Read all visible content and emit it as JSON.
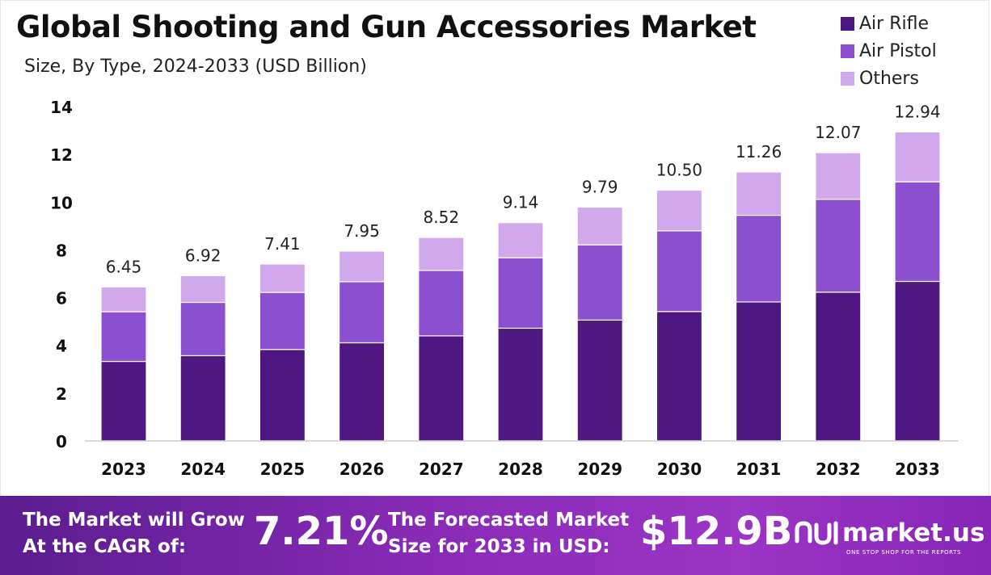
{
  "header": {
    "title": "Global Shooting and Gun Accessories Market",
    "subtitle": "Size, By Type, 2024-2033 (USD Billion)"
  },
  "legend": [
    {
      "label": "Air Rifle",
      "color": "#4e1782"
    },
    {
      "label": "Air Pistol",
      "color": "#8b4fd0"
    },
    {
      "label": "Others",
      "color": "#d2a8ec"
    }
  ],
  "chart_data": {
    "type": "bar",
    "stacked": true,
    "categories": [
      "2023",
      "2024",
      "2025",
      "2026",
      "2027",
      "2028",
      "2029",
      "2030",
      "2031",
      "2032",
      "2033"
    ],
    "series": [
      {
        "name": "Air Rifle",
        "color": "#4e1782",
        "values": [
          3.33,
          3.57,
          3.83,
          4.11,
          4.4,
          4.72,
          5.06,
          5.42,
          5.82,
          6.23,
          6.68
        ]
      },
      {
        "name": "Air Pistol",
        "color": "#8b4fd0",
        "values": [
          2.08,
          2.23,
          2.39,
          2.56,
          2.74,
          2.95,
          3.15,
          3.38,
          3.63,
          3.89,
          4.17
        ]
      },
      {
        "name": "Others",
        "color": "#d2a8ec",
        "values": [
          1.04,
          1.12,
          1.19,
          1.28,
          1.38,
          1.47,
          1.58,
          1.7,
          1.81,
          1.95,
          2.09
        ]
      }
    ],
    "totals": [
      "6.45",
      "6.92",
      "7.41",
      "7.95",
      "8.52",
      "9.14",
      "9.79",
      "10.50",
      "11.26",
      "12.07",
      "12.94"
    ],
    "y_ticks": [
      "0",
      "2",
      "4",
      "6",
      "8",
      "10",
      "12",
      "14"
    ],
    "ylim": [
      0,
      14
    ],
    "grid": false,
    "legend_position": "top-right"
  },
  "banner": {
    "cagr_label_line1": "The Market will Grow",
    "cagr_label_line2": "At the CAGR of:",
    "cagr_value": "7.21%",
    "forecast_label_line1": "The Forecasted Market",
    "forecast_label_line2": "Size for 2033 in USD:",
    "forecast_value": "$12.9B",
    "logo_text": "market.us",
    "logo_tagline": "ONE STOP SHOP FOR THE REPORTS"
  }
}
